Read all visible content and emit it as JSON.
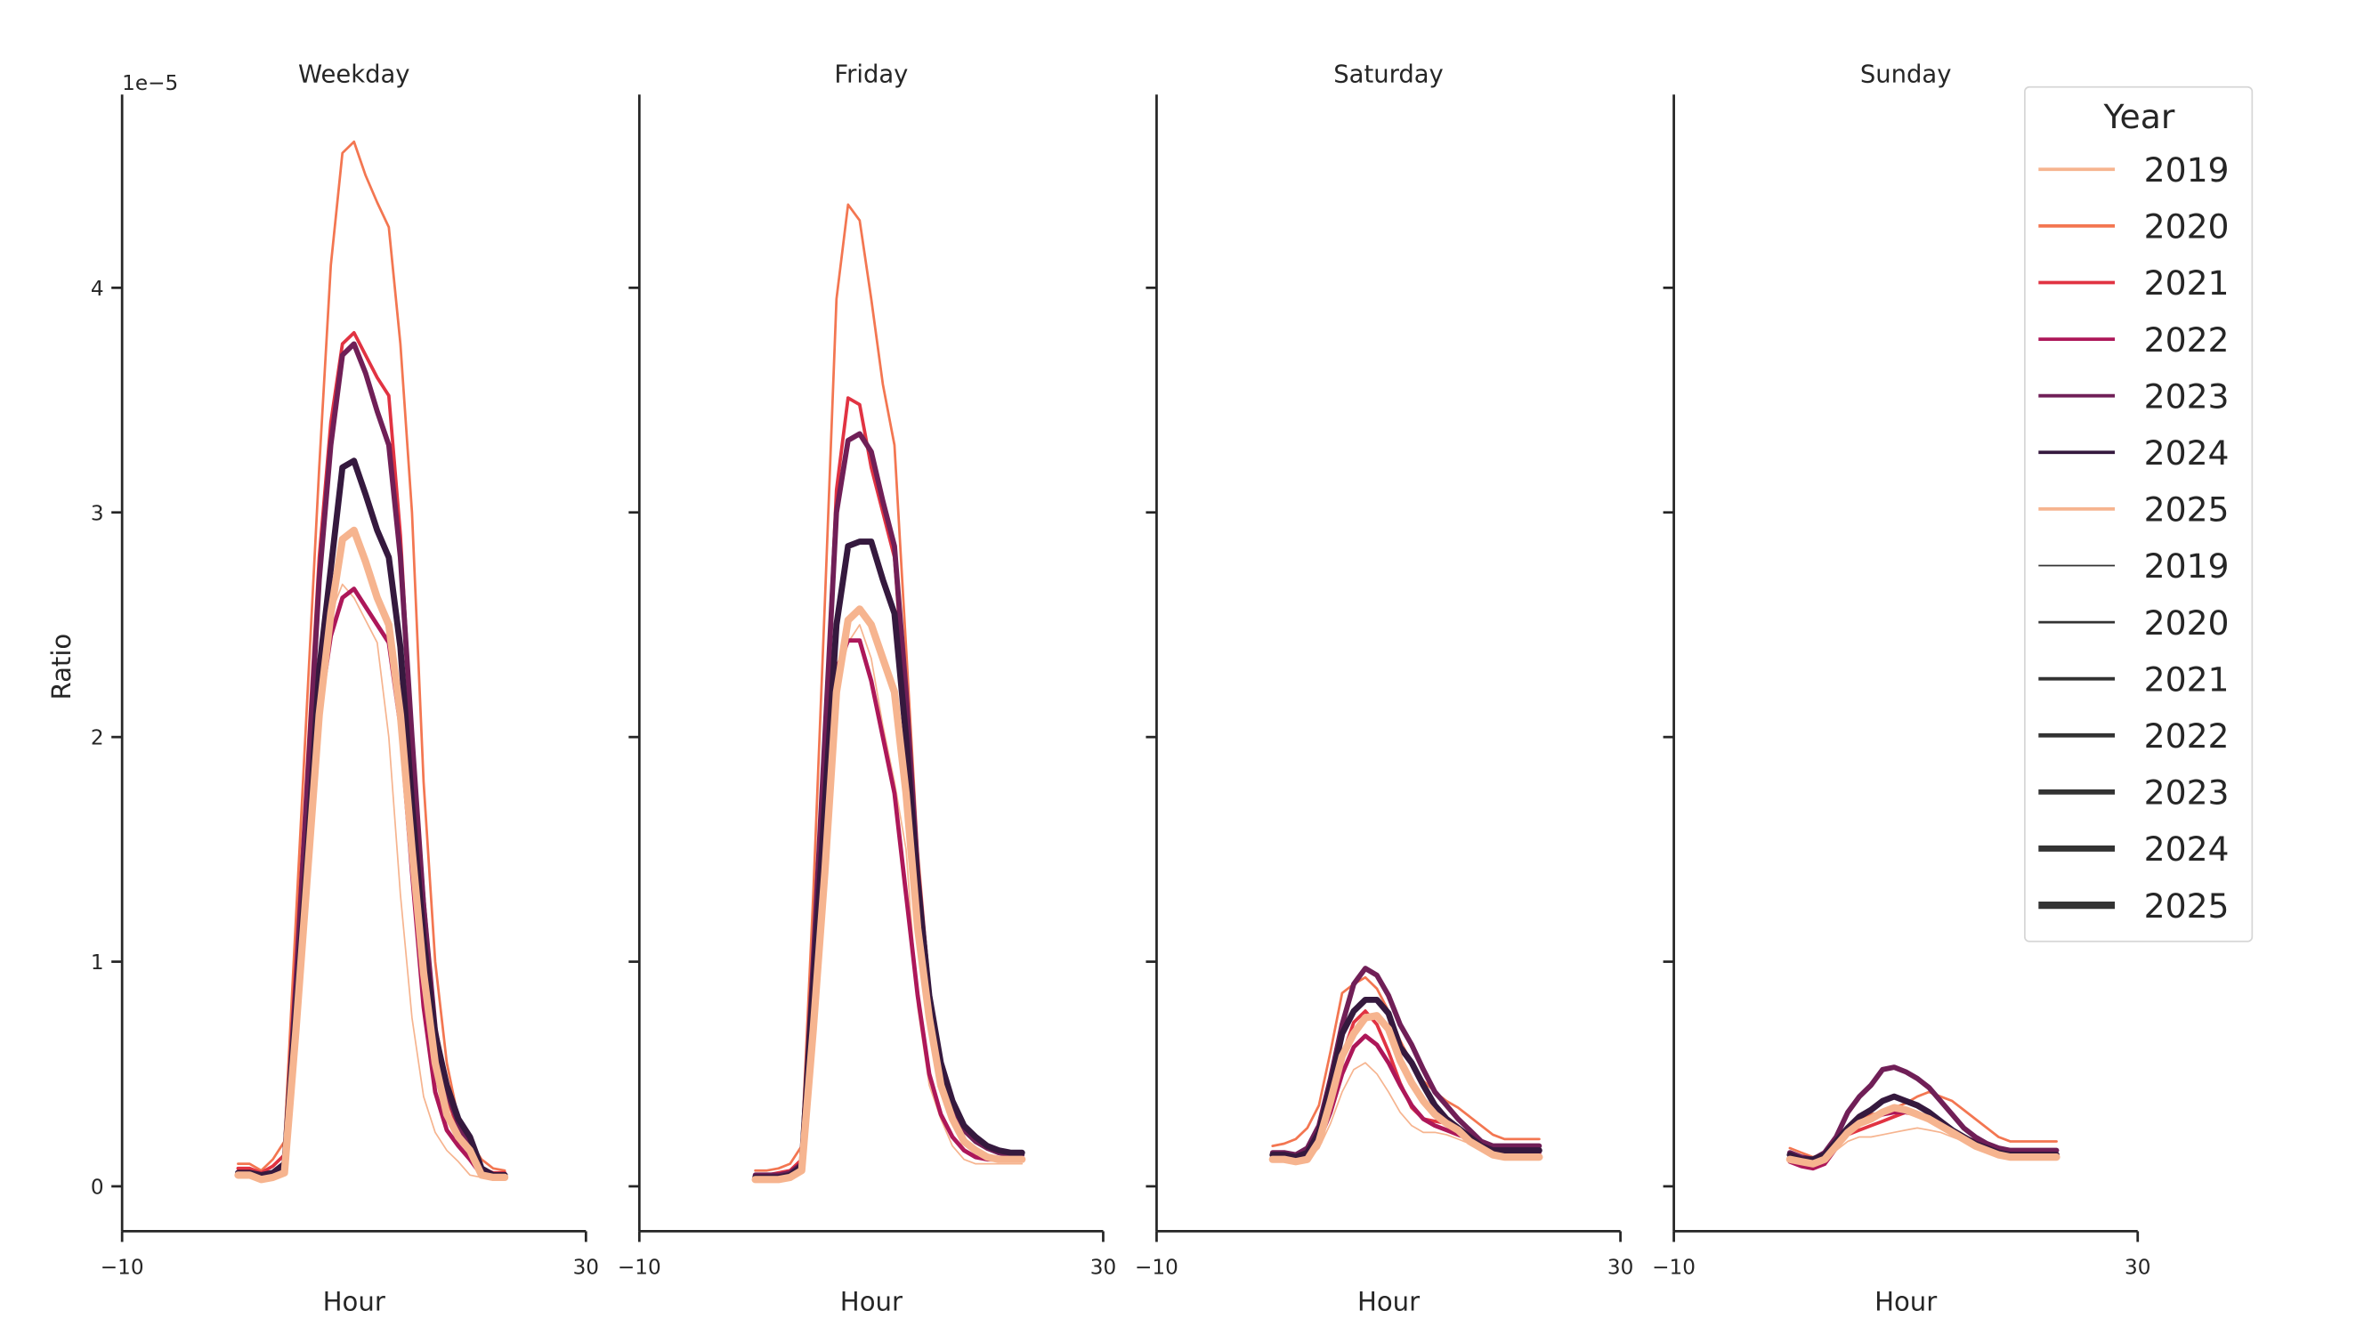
{
  "chart_data": {
    "type": "line",
    "ylabel": "Ratio",
    "y_offset_label": "1e−5",
    "xlabel": "Hour",
    "xlim": [
      -10,
      30
    ],
    "ylim": [
      -0.2,
      4.86
    ],
    "x_ticks": [
      "−10",
      "30"
    ],
    "y_ticks": [
      0,
      1,
      2,
      3,
      4
    ],
    "y_tick_labels": [
      "0",
      "1",
      "2",
      "3",
      "4"
    ],
    "grid": false,
    "legend": {
      "title": "Year",
      "placement": "top-right",
      "hue_entries": [
        "2019",
        "2020",
        "2021",
        "2022",
        "2023",
        "2024",
        "2025"
      ],
      "size_entries": [
        "2019",
        "2020",
        "2021",
        "2022",
        "2023",
        "2024",
        "2025"
      ]
    },
    "x": [
      0,
      1,
      2,
      3,
      4,
      5,
      6,
      7,
      8,
      9,
      10,
      11,
      12,
      13,
      14,
      15,
      16,
      17,
      18,
      19,
      20,
      21,
      22,
      23
    ],
    "colors": {
      "2019": "#f6b48f",
      "2020": "#f37651",
      "2021": "#e13342",
      "2022": "#ad1759",
      "2023": "#701f57",
      "2024": "#35193e",
      "2025": "#f6b48f"
    },
    "panels": [
      {
        "title": "Weekday",
        "series": [
          {
            "name": "2019",
            "values": [
              0.05,
              0.05,
              0.03,
              0.04,
              0.06,
              0.8,
              1.6,
              2.35,
              2.55,
              2.68,
              2.62,
              2.52,
              2.42,
              2.0,
              1.3,
              0.75,
              0.4,
              0.24,
              0.16,
              0.11,
              0.05,
              0.04,
              0.04,
              0.04
            ]
          },
          {
            "name": "2020",
            "values": [
              0.1,
              0.1,
              0.07,
              0.12,
              0.2,
              1.2,
              2.2,
              3.2,
              4.1,
              4.6,
              4.65,
              4.5,
              4.38,
              4.27,
              3.75,
              3.0,
              1.8,
              1.0,
              0.55,
              0.3,
              0.2,
              0.12,
              0.08,
              0.07
            ]
          },
          {
            "name": "2021",
            "values": [
              0.08,
              0.08,
              0.06,
              0.09,
              0.14,
              1.0,
              1.9,
              2.8,
              3.4,
              3.75,
              3.8,
              3.7,
              3.6,
              3.52,
              2.9,
              2.0,
              1.3,
              0.7,
              0.4,
              0.25,
              0.15,
              0.08,
              0.06,
              0.06
            ]
          },
          {
            "name": "2022",
            "values": [
              0.05,
              0.05,
              0.04,
              0.05,
              0.08,
              0.7,
              1.4,
              2.1,
              2.45,
              2.62,
              2.66,
              2.58,
              2.5,
              2.42,
              2.05,
              1.4,
              0.8,
              0.42,
              0.25,
              0.18,
              0.12,
              0.05,
              0.04,
              0.04
            ]
          },
          {
            "name": "2023",
            "values": [
              0.06,
              0.06,
              0.05,
              0.06,
              0.1,
              0.9,
              1.8,
              2.7,
              3.3,
              3.7,
              3.75,
              3.62,
              3.45,
              3.3,
              2.8,
              2.0,
              1.25,
              0.7,
              0.42,
              0.28,
              0.18,
              0.08,
              0.05,
              0.05
            ]
          },
          {
            "name": "2024",
            "values": [
              0.06,
              0.06,
              0.05,
              0.06,
              0.1,
              0.8,
              1.5,
              2.3,
              2.75,
              3.2,
              3.23,
              3.08,
              2.92,
              2.8,
              2.4,
              1.7,
              1.1,
              0.68,
              0.45,
              0.3,
              0.22,
              0.08,
              0.05,
              0.05
            ]
          },
          {
            "name": "2025",
            "values": [
              0.05,
              0.05,
              0.03,
              0.04,
              0.06,
              0.7,
              1.4,
              2.1,
              2.55,
              2.88,
              2.92,
              2.78,
              2.62,
              2.5,
              2.1,
              1.5,
              0.95,
              0.55,
              0.32,
              0.22,
              0.16,
              0.05,
              0.04,
              0.04
            ]
          }
        ]
      },
      {
        "title": "Friday",
        "series": [
          {
            "name": "2019",
            "values": [
              0.03,
              0.03,
              0.03,
              0.04,
              0.06,
              0.7,
              1.4,
              2.2,
              2.42,
              2.5,
              2.35,
              2.05,
              1.8,
              1.5,
              0.8,
              0.45,
              0.3,
              0.18,
              0.12,
              0.1,
              0.1,
              0.1,
              0.1,
              0.1
            ]
          },
          {
            "name": "2020",
            "values": [
              0.07,
              0.07,
              0.08,
              0.1,
              0.18,
              1.3,
              2.6,
              3.95,
              4.37,
              4.3,
              3.95,
              3.57,
              3.3,
              2.4,
              1.5,
              0.9,
              0.5,
              0.3,
              0.2,
              0.15,
              0.13,
              0.12,
              0.12,
              0.12
            ]
          },
          {
            "name": "2021",
            "values": [
              0.05,
              0.05,
              0.06,
              0.07,
              0.12,
              1.0,
              2.0,
              3.1,
              3.51,
              3.48,
              3.2,
              3.0,
              2.8,
              2.1,
              1.3,
              0.8,
              0.45,
              0.3,
              0.2,
              0.15,
              0.13,
              0.12,
              0.12,
              0.12
            ]
          },
          {
            "name": "2022",
            "values": [
              0.04,
              0.04,
              0.05,
              0.06,
              0.1,
              0.8,
              1.6,
              2.3,
              2.43,
              2.43,
              2.25,
              2.0,
              1.75,
              1.3,
              0.85,
              0.5,
              0.32,
              0.22,
              0.16,
              0.13,
              0.12,
              0.12,
              0.12,
              0.12
            ]
          },
          {
            "name": "2023",
            "values": [
              0.05,
              0.05,
              0.05,
              0.06,
              0.1,
              1.0,
              2.0,
              3.0,
              3.32,
              3.35,
              3.27,
              3.05,
              2.85,
              2.2,
              1.4,
              0.85,
              0.5,
              0.35,
              0.25,
              0.2,
              0.17,
              0.15,
              0.14,
              0.14
            ]
          },
          {
            "name": "2024",
            "values": [
              0.04,
              0.04,
              0.04,
              0.05,
              0.09,
              0.9,
              1.7,
              2.5,
              2.85,
              2.87,
              2.87,
              2.7,
              2.55,
              2.0,
              1.35,
              0.85,
              0.55,
              0.38,
              0.27,
              0.22,
              0.18,
              0.16,
              0.15,
              0.15
            ]
          },
          {
            "name": "2025",
            "values": [
              0.03,
              0.03,
              0.03,
              0.04,
              0.07,
              0.7,
              1.4,
              2.2,
              2.52,
              2.57,
              2.5,
              2.35,
              2.2,
              1.75,
              1.15,
              0.75,
              0.45,
              0.3,
              0.2,
              0.16,
              0.13,
              0.12,
              0.12,
              0.12
            ]
          }
        ]
      },
      {
        "title": "Saturday",
        "series": [
          {
            "name": "2019",
            "values": [
              0.12,
              0.12,
              0.11,
              0.12,
              0.17,
              0.28,
              0.42,
              0.52,
              0.55,
              0.5,
              0.42,
              0.33,
              0.27,
              0.24,
              0.24,
              0.23,
              0.21,
              0.19,
              0.17,
              0.15,
              0.14,
              0.14,
              0.14,
              0.14
            ]
          },
          {
            "name": "2020",
            "values": [
              0.18,
              0.19,
              0.21,
              0.26,
              0.36,
              0.6,
              0.86,
              0.9,
              0.93,
              0.88,
              0.78,
              0.65,
              0.55,
              0.47,
              0.42,
              0.38,
              0.35,
              0.31,
              0.27,
              0.23,
              0.21,
              0.21,
              0.21,
              0.21
            ]
          },
          {
            "name": "2021",
            "values": [
              0.13,
              0.13,
              0.12,
              0.14,
              0.2,
              0.35,
              0.58,
              0.73,
              0.78,
              0.72,
              0.6,
              0.46,
              0.35,
              0.3,
              0.29,
              0.28,
              0.26,
              0.22,
              0.19,
              0.17,
              0.16,
              0.16,
              0.16,
              0.16
            ]
          },
          {
            "name": "2022",
            "values": [
              0.13,
              0.13,
              0.12,
              0.14,
              0.2,
              0.33,
              0.5,
              0.62,
              0.67,
              0.63,
              0.55,
              0.45,
              0.36,
              0.3,
              0.27,
              0.25,
              0.23,
              0.21,
              0.18,
              0.16,
              0.15,
              0.15,
              0.15,
              0.15
            ]
          },
          {
            "name": "2023",
            "values": [
              0.15,
              0.15,
              0.14,
              0.17,
              0.27,
              0.48,
              0.72,
              0.9,
              0.97,
              0.94,
              0.85,
              0.72,
              0.63,
              0.52,
              0.42,
              0.36,
              0.3,
              0.25,
              0.2,
              0.18,
              0.18,
              0.18,
              0.18,
              0.18
            ]
          },
          {
            "name": "2024",
            "values": [
              0.14,
              0.14,
              0.13,
              0.15,
              0.24,
              0.45,
              0.68,
              0.78,
              0.83,
              0.83,
              0.77,
              0.62,
              0.55,
              0.45,
              0.36,
              0.3,
              0.26,
              0.22,
              0.18,
              0.16,
              0.16,
              0.16,
              0.16,
              0.16
            ]
          },
          {
            "name": "2025",
            "values": [
              0.12,
              0.12,
              0.11,
              0.12,
              0.2,
              0.38,
              0.58,
              0.68,
              0.75,
              0.76,
              0.7,
              0.56,
              0.46,
              0.38,
              0.32,
              0.28,
              0.25,
              0.2,
              0.17,
              0.14,
              0.13,
              0.13,
              0.13,
              0.13
            ]
          }
        ]
      },
      {
        "title": "Sunday",
        "series": [
          {
            "name": "2019",
            "values": [
              0.12,
              0.11,
              0.1,
              0.12,
              0.16,
              0.2,
              0.22,
              0.22,
              0.23,
              0.24,
              0.25,
              0.26,
              0.25,
              0.24,
              0.22,
              0.2,
              0.18,
              0.16,
              0.14,
              0.13,
              0.13,
              0.13,
              0.13,
              0.13
            ]
          },
          {
            "name": "2020",
            "values": [
              0.17,
              0.15,
              0.13,
              0.15,
              0.2,
              0.26,
              0.3,
              0.32,
              0.33,
              0.35,
              0.37,
              0.4,
              0.42,
              0.4,
              0.38,
              0.34,
              0.3,
              0.26,
              0.22,
              0.2,
              0.2,
              0.2,
              0.2,
              0.2
            ]
          },
          {
            "name": "2021",
            "values": [
              0.12,
              0.1,
              0.09,
              0.12,
              0.18,
              0.23,
              0.25,
              0.27,
              0.29,
              0.31,
              0.33,
              0.32,
              0.3,
              0.28,
              0.25,
              0.22,
              0.19,
              0.16,
              0.14,
              0.13,
              0.13,
              0.13,
              0.13,
              0.13
            ]
          },
          {
            "name": "2022",
            "values": [
              0.11,
              0.09,
              0.08,
              0.1,
              0.17,
              0.24,
              0.28,
              0.3,
              0.32,
              0.33,
              0.33,
              0.32,
              0.3,
              0.28,
              0.25,
              0.22,
              0.2,
              0.17,
              0.15,
              0.14,
              0.14,
              0.14,
              0.14,
              0.14
            ]
          },
          {
            "name": "2023",
            "values": [
              0.15,
              0.13,
              0.12,
              0.15,
              0.22,
              0.33,
              0.4,
              0.45,
              0.52,
              0.53,
              0.51,
              0.48,
              0.44,
              0.38,
              0.32,
              0.26,
              0.22,
              0.19,
              0.17,
              0.16,
              0.16,
              0.16,
              0.16,
              0.16
            ]
          },
          {
            "name": "2024",
            "values": [
              0.14,
              0.12,
              0.12,
              0.14,
              0.2,
              0.26,
              0.31,
              0.34,
              0.38,
              0.4,
              0.38,
              0.36,
              0.33,
              0.29,
              0.25,
              0.22,
              0.19,
              0.17,
              0.15,
              0.14,
              0.14,
              0.14,
              0.14,
              0.14
            ]
          },
          {
            "name": "2025",
            "values": [
              0.12,
              0.11,
              0.1,
              0.12,
              0.18,
              0.24,
              0.28,
              0.3,
              0.33,
              0.35,
              0.34,
              0.32,
              0.3,
              0.27,
              0.24,
              0.21,
              0.18,
              0.16,
              0.14,
              0.13,
              0.13,
              0.13,
              0.13,
              0.13
            ]
          }
        ]
      }
    ]
  }
}
